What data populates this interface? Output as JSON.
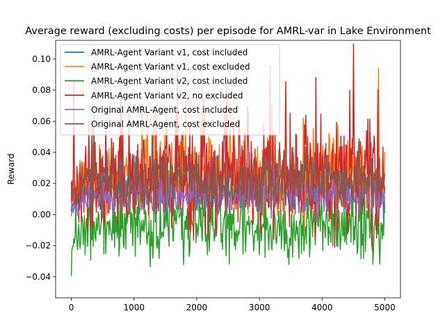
{
  "chart_data": {
    "type": "line",
    "title": "Average reward (excluding costs) per episode for AMRL-var in Lake Environment",
    "xlabel": "",
    "ylabel": "Reward",
    "xlim": [
      -250,
      5250
    ],
    "ylim": [
      -0.0535,
      0.112
    ],
    "x_ticks": [
      0,
      1000,
      2000,
      3000,
      4000,
      5000
    ],
    "x_tick_labels": [
      "0",
      "1000",
      "2000",
      "3000",
      "4000",
      "5000"
    ],
    "y_ticks": [
      -0.04,
      -0.02,
      0.0,
      0.02,
      0.04,
      0.06,
      0.08,
      0.1
    ],
    "y_tick_labels": [
      "−0.04",
      "−0.02",
      "0.00",
      "0.02",
      "0.04",
      "0.06",
      "0.08",
      "0.10"
    ],
    "grid": false,
    "legend_position": "top-left",
    "n_episodes": 5000,
    "series": [
      {
        "name": "AMRL-Agent Variant v1, cost included",
        "color": "#1f77b4",
        "mean": 0.018,
        "spread": 0.008,
        "spike_prob": 0.03,
        "spike_amp": 0.02,
        "start": 0.006,
        "seed": 11
      },
      {
        "name": "AMRL-Agent Variant v1, cost excluded",
        "color": "#ff7f0e",
        "mean": 0.024,
        "spread": 0.012,
        "spike_prob": 0.06,
        "spike_amp": 0.04,
        "start": 0.012,
        "seed": 23
      },
      {
        "name": "AMRL-Agent Variant v2, cost included",
        "color": "#2ca02c",
        "mean": -0.007,
        "spread": 0.011,
        "spike_prob": 0.04,
        "spike_amp": 0.025,
        "start": -0.02,
        "seed": 37
      },
      {
        "name": "AMRL-Agent Variant v2, no excluded",
        "color": "#d62728",
        "mean": 0.025,
        "spread": 0.017,
        "spike_prob": 0.08,
        "spike_amp": 0.055,
        "start": 0.012,
        "seed": 41
      },
      {
        "name": "Original AMRL-Agent, cost included",
        "color": "#9467bd",
        "mean": 0.012,
        "spread": 0.006,
        "spike_prob": 0.03,
        "spike_amp": 0.015,
        "start": 0.004,
        "seed": 53
      },
      {
        "name": "Original AMRL-Agent, cost excluded",
        "color": "#8c564b",
        "mean": 0.022,
        "spread": 0.01,
        "spike_prob": 0.04,
        "spike_amp": 0.025,
        "start": 0.014,
        "seed": 67
      }
    ]
  }
}
